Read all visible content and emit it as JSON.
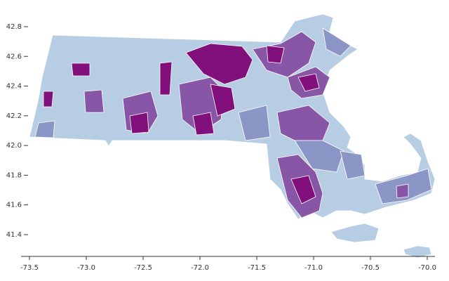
{
  "chart_data": {
    "type": "map",
    "xlim": [
      -73.5,
      -70.0
    ],
    "ylim": [
      41.25,
      42.85
    ],
    "xticks": [
      -73.5,
      {
        "value": -73,
        "label": "-73.0"
      },
      -72.5,
      {
        "value": -72,
        "label": "-72.0"
      },
      -71.5,
      {
        "value": -71,
        "label": "-71.0"
      },
      -70.5,
      {
        "value": -70,
        "label": "-70.0"
      }
    ],
    "yticks": [
      41.4,
      41.6,
      41.8,
      {
        "value": 42,
        "label": "42.0"
      },
      42.2,
      42.4,
      42.6,
      42.8
    ]
  }
}
